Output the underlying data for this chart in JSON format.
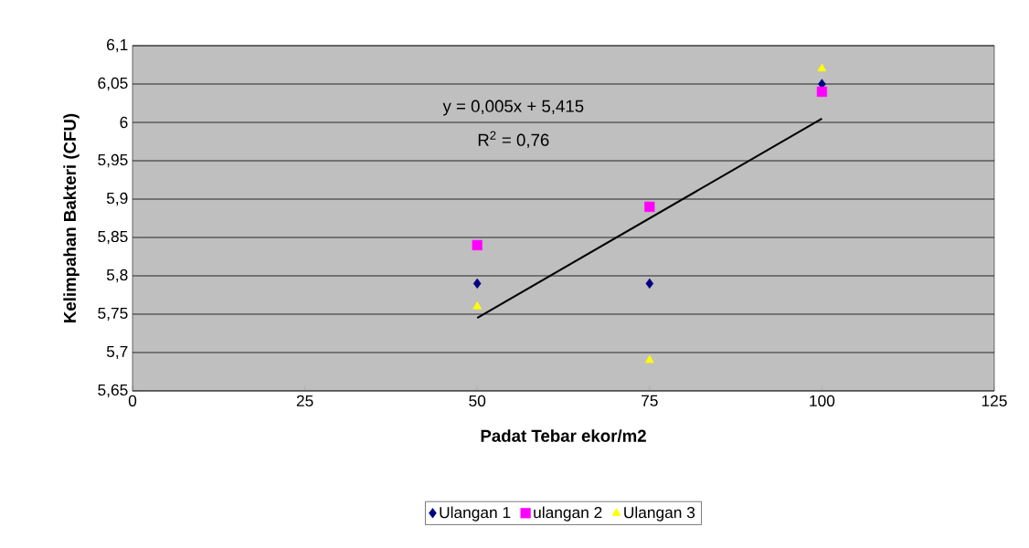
{
  "chart_data": {
    "type": "scatter",
    "xlabel": "Padat Tebar ekor/m2",
    "ylabel": "Kelimpahan Bakteri (CFU)",
    "x": [
      50,
      75,
      100
    ],
    "series": [
      {
        "name": "Ulangan 1",
        "color": "#000080",
        "marker": "diamond",
        "values": [
          5.79,
          5.79,
          6.05
        ]
      },
      {
        "name": "ulangan 2",
        "color": "#ff00ff",
        "marker": "square",
        "values": [
          5.84,
          5.89,
          6.04
        ]
      },
      {
        "name": "Ulangan 3",
        "color": "#ffff00",
        "marker": "triangle",
        "values": [
          5.76,
          5.69,
          6.07
        ]
      },
      {
        "type": "line",
        "color": "#000000",
        "marker": "none",
        "x": [
          50,
          100
        ],
        "values": [
          5.745,
          6.005
        ]
      }
    ],
    "annotations": [
      "y = 0,005x + 5,415",
      "R$^{2}$ = 0,76"
    ],
    "xlim": [
      0,
      125
    ],
    "xticks": [
      0,
      25,
      50,
      75,
      100,
      125
    ],
    "ylim": [
      5.65,
      6.1
    ],
    "yticks": [
      {
        "value": 5.65,
        "label": "5,65"
      },
      {
        "value": 5.7,
        "label": "5,7"
      },
      {
        "value": 5.75,
        "label": "5,75"
      },
      {
        "value": 5.8,
        "label": "5,8"
      },
      {
        "value": 5.85,
        "label": "5,85"
      },
      {
        "value": 5.9,
        "label": "5,9"
      },
      {
        "value": 5.95,
        "label": "5,95"
      },
      {
        "value": 6,
        "label": "6"
      },
      {
        "value": 6.05,
        "label": "6,05"
      },
      {
        "value": 6.1,
        "label": "6,1"
      }
    ],
    "grid": "y",
    "legend": "bottom"
  }
}
